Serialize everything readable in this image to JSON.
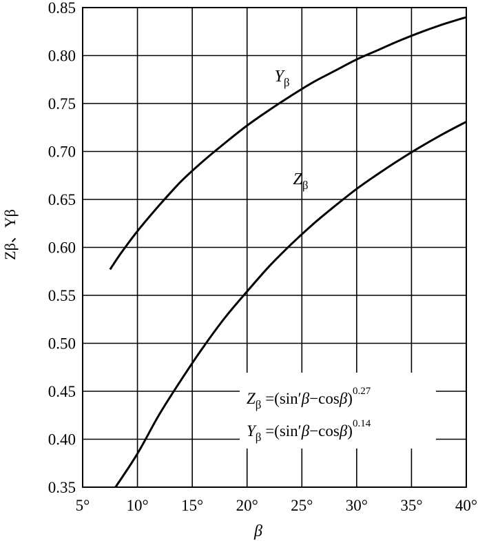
{
  "chart_data": {
    "type": "line",
    "title": "",
    "xlabel": "β",
    "ylabel": "Zβ、Yβ",
    "xlim": [
      5,
      40
    ],
    "ylim": [
      0.35,
      0.85
    ],
    "x_ticks": [
      5,
      10,
      15,
      20,
      25,
      30,
      35,
      40
    ],
    "x_tick_labels": [
      "5°",
      "10°",
      "15°",
      "20°",
      "25°",
      "30°",
      "35°",
      "40°"
    ],
    "y_ticks": [
      0.35,
      0.4,
      0.45,
      0.5,
      0.55,
      0.6,
      0.65,
      0.7,
      0.75,
      0.8,
      0.85
    ],
    "y_tick_labels": [
      "0.35",
      "0.40",
      "0.45",
      "0.50",
      "0.55",
      "0.60",
      "0.65",
      "0.70",
      "0.75",
      "0.80",
      "0.85"
    ],
    "grid": true,
    "series": [
      {
        "name": "Yβ",
        "x": [
          7.5,
          8.5,
          10,
          12,
          14,
          16,
          18,
          20,
          22,
          24,
          26,
          28,
          30,
          32,
          34,
          36,
          38,
          40
        ],
        "values": [
          0.577,
          0.594,
          0.617,
          0.644,
          0.669,
          0.69,
          0.709,
          0.727,
          0.743,
          0.758,
          0.772,
          0.784,
          0.796,
          0.806,
          0.816,
          0.825,
          0.833,
          0.84
        ]
      },
      {
        "name": "Zβ",
        "x": [
          8,
          10,
          12,
          14,
          16,
          18,
          20,
          22,
          24,
          26,
          28,
          30,
          32,
          34,
          36,
          38,
          40
        ],
        "values": [
          0.35,
          0.385,
          0.426,
          0.462,
          0.496,
          0.527,
          0.554,
          0.58,
          0.603,
          0.624,
          0.643,
          0.661,
          0.677,
          0.692,
          0.706,
          0.719,
          0.731
        ]
      }
    ],
    "series_labels": [
      {
        "text": "Y",
        "sub": "β",
        "x": 22.5,
        "y": 0.773
      },
      {
        "text": "Z",
        "sub": "β",
        "x": 24.2,
        "y": 0.666
      }
    ],
    "annotations": [
      {
        "lhs": "Z",
        "lhs_sub": "β",
        "eq": " =(sin′",
        "beta": "β",
        "minus": "−cos",
        "beta2": "β",
        "close": ")",
        "exp": "0.27"
      },
      {
        "lhs": "Y",
        "lhs_sub": "β",
        "eq": " =(sin′",
        "beta": "β",
        "minus": "−cos",
        "beta2": "β",
        "close": ")",
        "exp": "0.14"
      }
    ]
  }
}
